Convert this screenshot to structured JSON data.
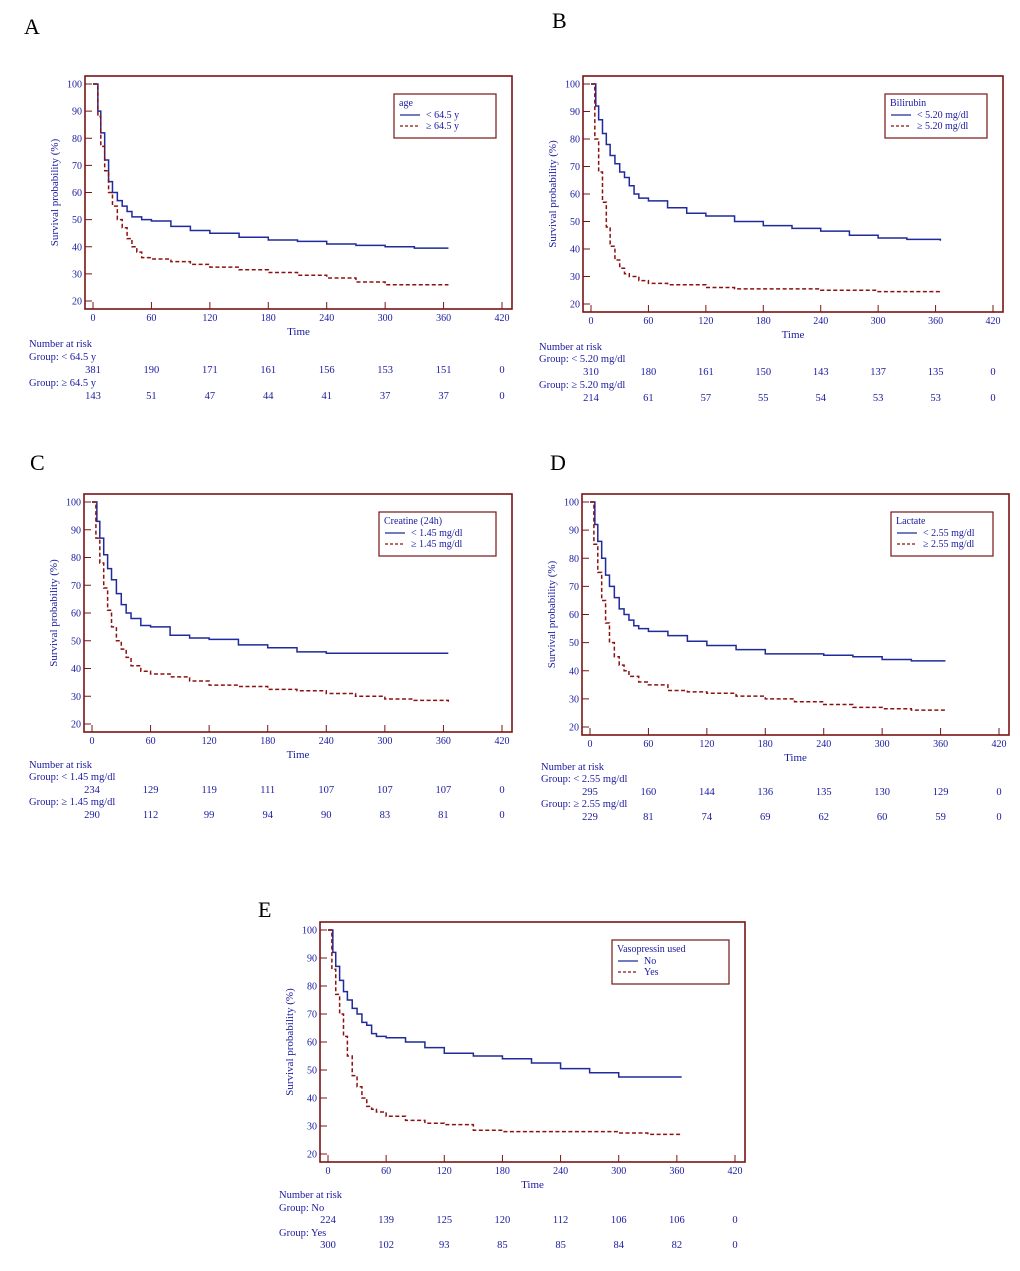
{
  "colors": {
    "frame": "#7a1414",
    "text": "#1a1aa0",
    "group1": "#1f2a9c",
    "group2": "#8b1010"
  },
  "common": {
    "xlabel": "Time",
    "ylabel": "Survival probability (%)",
    "risk_header": "Number at risk",
    "xticks": [
      0,
      60,
      120,
      180,
      240,
      300,
      360,
      420
    ],
    "yticks": [
      20,
      30,
      40,
      50,
      60,
      70,
      80,
      90,
      100
    ]
  },
  "chart_data": [
    {
      "panel": "A",
      "type": "line",
      "step": true,
      "title": "",
      "xlabel": "Time",
      "ylabel": "Survival probability (%)",
      "xlim": [
        0,
        420
      ],
      "ylim": [
        20,
        100
      ],
      "legend_title": "age",
      "legend_position": "top-right",
      "series": [
        {
          "name": "< 64.5 y",
          "style": "solid",
          "x": [
            0,
            5,
            8,
            12,
            16,
            20,
            25,
            30,
            35,
            40,
            50,
            60,
            80,
            100,
            120,
            150,
            180,
            210,
            240,
            270,
            300,
            330,
            365
          ],
          "y": [
            100,
            90,
            82,
            72,
            64,
            60,
            57,
            55,
            53,
            51,
            50,
            49.5,
            47.5,
            46,
            45,
            43.5,
            42.5,
            42,
            41,
            40.5,
            40,
            39.5,
            39.5
          ]
        },
        {
          "name": "≥ 64.5 y",
          "style": "dashed",
          "x": [
            0,
            5,
            8,
            12,
            16,
            20,
            25,
            30,
            35,
            40,
            45,
            50,
            60,
            80,
            100,
            120,
            150,
            180,
            210,
            240,
            270,
            300,
            330,
            365
          ],
          "y": [
            100,
            88,
            77,
            68,
            60,
            55,
            50,
            47,
            43,
            40,
            38,
            36,
            35.5,
            34.5,
            33.5,
            32.5,
            31.5,
            30.5,
            29.5,
            28.5,
            27,
            26,
            26,
            26
          ]
        }
      ],
      "risk_table": {
        "groups": [
          {
            "label": "Group: < 64.5 y",
            "values": [
              "381",
              "190",
              "171",
              "161",
              "156",
              "153",
              "151",
              "0"
            ]
          },
          {
            "label": "Group: ≥ 64.5 y",
            "values": [
              "143",
              "51",
              "47",
              "44",
              "41",
              "37",
              "37",
              "0"
            ]
          }
        ]
      }
    },
    {
      "panel": "B",
      "type": "line",
      "step": true,
      "title": "",
      "xlabel": "Time",
      "ylabel": "Survival probability (%)",
      "xlim": [
        0,
        420
      ],
      "ylim": [
        20,
        100
      ],
      "legend_title": "Bilirubin",
      "legend_position": "top-right",
      "series": [
        {
          "name": "< 5.20 mg/dl",
          "style": "solid",
          "x": [
            0,
            5,
            8,
            12,
            16,
            20,
            25,
            30,
            35,
            40,
            45,
            50,
            60,
            80,
            100,
            120,
            150,
            180,
            210,
            240,
            270,
            300,
            330,
            365
          ],
          "y": [
            100,
            92,
            87,
            82,
            78,
            74,
            71,
            68,
            66,
            63,
            60,
            58.5,
            57.5,
            55,
            53,
            52,
            50,
            48.5,
            47.5,
            46.5,
            45,
            44,
            43.5,
            43
          ]
        },
        {
          "name": "≥ 5.20 mg/dl",
          "style": "dashed",
          "x": [
            0,
            4,
            8,
            12,
            16,
            20,
            25,
            30,
            35,
            40,
            50,
            60,
            80,
            100,
            120,
            150,
            180,
            240,
            300,
            365
          ],
          "y": [
            100,
            80,
            68,
            57,
            48,
            41,
            36,
            33,
            31,
            30,
            28.5,
            27.5,
            27,
            27,
            26,
            25.5,
            25.5,
            25,
            24.5,
            24.5
          ]
        }
      ],
      "risk_table": {
        "groups": [
          {
            "label": "Group: < 5.20 mg/dl",
            "values": [
              "310",
              "180",
              "161",
              "150",
              "143",
              "137",
              "135",
              "0"
            ]
          },
          {
            "label": "Group: ≥ 5.20 mg/dl",
            "values": [
              "214",
              "61",
              "57",
              "55",
              "54",
              "53",
              "53",
              "0"
            ]
          }
        ]
      }
    },
    {
      "panel": "C",
      "type": "line",
      "step": true,
      "title": "",
      "xlabel": "Time",
      "ylabel": "Survival probability (%)",
      "xlim": [
        0,
        420
      ],
      "ylim": [
        20,
        100
      ],
      "legend_title": "Creatine (24h)",
      "legend_position": "top-right",
      "series": [
        {
          "name": "< 1.45 mg/dl",
          "style": "solid",
          "x": [
            0,
            5,
            8,
            12,
            16,
            20,
            25,
            30,
            35,
            40,
            50,
            60,
            80,
            100,
            120,
            150,
            180,
            210,
            240,
            270,
            300,
            330,
            365
          ],
          "y": [
            100,
            93,
            87,
            81,
            76,
            72,
            67,
            63,
            60,
            58,
            55.5,
            55,
            52,
            51,
            50.5,
            48.5,
            47.5,
            46,
            45.5,
            45.5,
            45.5,
            45.5,
            45.5
          ]
        },
        {
          "name": "≥ 1.45 mg/dl",
          "style": "dashed",
          "x": [
            0,
            4,
            8,
            12,
            16,
            20,
            25,
            30,
            35,
            40,
            50,
            60,
            80,
            100,
            120,
            150,
            180,
            210,
            240,
            270,
            300,
            330,
            365
          ],
          "y": [
            100,
            87,
            78,
            69,
            61,
            55,
            50,
            47,
            44,
            41,
            39,
            38,
            37,
            35.5,
            34,
            33.5,
            32.5,
            32,
            31,
            30,
            29,
            28.5,
            28
          ]
        }
      ],
      "risk_table": {
        "groups": [
          {
            "label": "Group: < 1.45 mg/dl",
            "values": [
              "234",
              "129",
              "119",
              "111",
              "107",
              "107",
              "107",
              "0"
            ]
          },
          {
            "label": "Group: ≥ 1.45 mg/dl",
            "values": [
              "290",
              "112",
              "99",
              "94",
              "90",
              "83",
              "81",
              "0"
            ]
          }
        ]
      }
    },
    {
      "panel": "D",
      "type": "line",
      "step": true,
      "title": "",
      "xlabel": "Time",
      "ylabel": "Survival probability (%)",
      "xlim": [
        0,
        420
      ],
      "ylim": [
        20,
        100
      ],
      "legend_title": "Lactate",
      "legend_position": "top-right",
      "series": [
        {
          "name": "< 2.55 mg/dl",
          "style": "solid",
          "x": [
            0,
            5,
            8,
            12,
            16,
            20,
            25,
            30,
            35,
            40,
            45,
            50,
            60,
            80,
            100,
            120,
            150,
            180,
            210,
            240,
            270,
            300,
            330,
            365
          ],
          "y": [
            100,
            92,
            86,
            80,
            74,
            70,
            66,
            62,
            60,
            58,
            56,
            55,
            54,
            52.5,
            50.5,
            49,
            47.5,
            46,
            46,
            45.5,
            45,
            44,
            43.5,
            43.5
          ]
        },
        {
          "name": "≥ 2.55 mg/dl",
          "style": "dashed",
          "x": [
            0,
            4,
            8,
            12,
            16,
            20,
            25,
            30,
            35,
            40,
            50,
            60,
            80,
            100,
            120,
            150,
            180,
            210,
            240,
            270,
            300,
            330,
            365
          ],
          "y": [
            100,
            85,
            75,
            65,
            57,
            50,
            45,
            42,
            40,
            38,
            36,
            35,
            33,
            32.5,
            32,
            31,
            30,
            29,
            28,
            27,
            26.5,
            26,
            25.5
          ]
        }
      ],
      "risk_table": {
        "groups": [
          {
            "label": "Group: < 2.55 mg/dl",
            "values": [
              "295",
              "160",
              "144",
              "136",
              "135",
              "130",
              "129",
              "0"
            ]
          },
          {
            "label": "Group: ≥ 2.55 mg/dl",
            "values": [
              "229",
              "81",
              "74",
              "69",
              "62",
              "60",
              "59",
              "0"
            ]
          }
        ]
      }
    },
    {
      "panel": "E",
      "type": "line",
      "step": true,
      "title": "",
      "xlabel": "Time",
      "ylabel": "Survival probability (%)",
      "xlim": [
        0,
        420
      ],
      "ylim": [
        20,
        100
      ],
      "legend_title": "Vasopressin used",
      "legend_position": "top-right",
      "series": [
        {
          "name": "No",
          "style": "solid",
          "x": [
            0,
            5,
            8,
            12,
            16,
            20,
            25,
            30,
            35,
            40,
            45,
            50,
            60,
            80,
            100,
            120,
            150,
            180,
            210,
            240,
            270,
            300,
            330,
            365
          ],
          "y": [
            100,
            92,
            87,
            82,
            78,
            75,
            72,
            70,
            67,
            66,
            63,
            62,
            61.5,
            60,
            58,
            56,
            55,
            54,
            52.5,
            50.5,
            49,
            47.5,
            47.5,
            47.5
          ]
        },
        {
          "name": "Yes",
          "style": "dashed",
          "x": [
            0,
            4,
            8,
            12,
            16,
            20,
            25,
            30,
            35,
            40,
            45,
            50,
            60,
            80,
            100,
            120,
            150,
            180,
            210,
            240,
            270,
            300,
            330,
            365
          ],
          "y": [
            100,
            86,
            77,
            70,
            62,
            55,
            48,
            44,
            40,
            37,
            36,
            35,
            33.5,
            32,
            31,
            30.5,
            28.5,
            28,
            28,
            28,
            28,
            27.5,
            27,
            27
          ]
        }
      ],
      "risk_table": {
        "groups": [
          {
            "label": "Group: No",
            "values": [
              "224",
              "139",
              "125",
              "120",
              "112",
              "106",
              "106",
              "0"
            ]
          },
          {
            "label": "Group: Yes",
            "values": [
              "300",
              "102",
              "93",
              "85",
              "85",
              "84",
              "82",
              "0"
            ]
          }
        ]
      }
    }
  ]
}
